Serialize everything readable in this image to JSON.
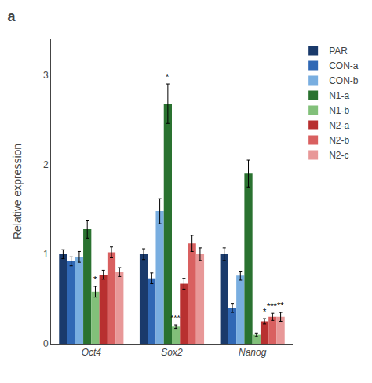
{
  "chart_data": {
    "type": "bar",
    "title": "a",
    "ylabel": "Relative expression",
    "categories": [
      "Oct4",
      "Sox2",
      "Nanog"
    ],
    "series": [
      {
        "name": "PAR",
        "color": "#1a3a6b",
        "values": [
          1.0,
          1.0,
          1.0
        ],
        "errors": [
          0.05,
          0.06,
          0.07
        ]
      },
      {
        "name": "CON-a",
        "color": "#3068b5",
        "values": [
          0.92,
          0.73,
          0.4
        ],
        "errors": [
          0.05,
          0.06,
          0.05
        ]
      },
      {
        "name": "CON-b",
        "color": "#79aee0",
        "values": [
          0.97,
          1.48,
          0.76
        ],
        "errors": [
          0.06,
          0.14,
          0.05
        ]
      },
      {
        "name": "N1-a",
        "color": "#2a7230",
        "values": [
          1.28,
          2.68,
          1.9
        ],
        "errors": [
          0.1,
          0.22,
          0.15
        ],
        "annotations": [
          null,
          "*",
          null
        ]
      },
      {
        "name": "N1-b",
        "color": "#82c07a",
        "values": [
          0.58,
          0.19,
          0.1
        ],
        "errors": [
          0.06,
          0.02,
          0.02
        ],
        "annotations": [
          "*",
          "***",
          null
        ]
      },
      {
        "name": "N2-a",
        "color": "#b83030",
        "values": [
          0.77,
          0.67,
          0.25
        ],
        "errors": [
          0.05,
          0.06,
          0.03
        ],
        "annotations": [
          null,
          null,
          "*"
        ]
      },
      {
        "name": "N2-b",
        "color": "#d96060",
        "values": [
          1.02,
          1.12,
          0.3
        ],
        "errors": [
          0.06,
          0.09,
          0.04
        ],
        "annotations": [
          null,
          null,
          "***"
        ]
      },
      {
        "name": "N2-c",
        "color": "#e89898",
        "values": [
          0.8,
          1.0,
          0.3
        ],
        "errors": [
          0.05,
          0.07,
          0.05
        ],
        "annotations": [
          null,
          null,
          "**"
        ]
      }
    ],
    "ylim": [
      0,
      3.4
    ],
    "yticks": [
      0,
      1,
      2,
      3
    ],
    "grid": false,
    "legend": "right"
  }
}
